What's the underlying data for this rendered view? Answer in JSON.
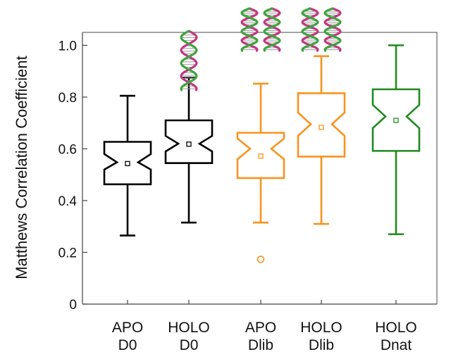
{
  "chart_data": {
    "type": "boxplot",
    "ylabel": "Matthews Correlation Coefficient",
    "ylim": [
      0,
      1.05
    ],
    "yticks": [
      0,
      0.2,
      0.4,
      0.6,
      0.8,
      1.0
    ],
    "ytick_labels": [
      "0",
      "0.2",
      "0.4",
      "0.6",
      "0.8",
      "1.0"
    ],
    "categories": [
      {
        "line1": "APO",
        "line2": "D0"
      },
      {
        "line1": "HOLO",
        "line2": "D0"
      },
      {
        "line1": "APO",
        "line2": "Dlib"
      },
      {
        "line1": "HOLO",
        "line2": "Dlib"
      },
      {
        "line1": "HOLO",
        "line2": "Dnat"
      }
    ],
    "series": [
      {
        "whisker_low": 0.265,
        "q1": 0.463,
        "median": 0.548,
        "q3": 0.627,
        "whisker_high": 0.805,
        "mean": 0.543,
        "notch_low": 0.52,
        "notch_high": 0.58,
        "outliers": [],
        "color": "#000000",
        "dna_icons": 0
      },
      {
        "whisker_low": 0.315,
        "q1": 0.545,
        "median": 0.62,
        "q3": 0.71,
        "whisker_high": 0.875,
        "mean": 0.618,
        "notch_low": 0.59,
        "notch_high": 0.65,
        "outliers": [],
        "color": "#000000",
        "dna_icons": 1
      },
      {
        "whisker_low": 0.315,
        "q1": 0.487,
        "median": 0.6,
        "q3": 0.662,
        "whisker_high": 0.852,
        "mean": 0.572,
        "notch_low": 0.56,
        "notch_high": 0.64,
        "outliers": [
          0.173
        ],
        "color": "#f7931e",
        "dna_icons": 2
      },
      {
        "whisker_low": 0.31,
        "q1": 0.57,
        "median": 0.695,
        "q3": 0.815,
        "whisker_high": 0.958,
        "mean": 0.683,
        "notch_low": 0.65,
        "notch_high": 0.74,
        "outliers": [],
        "color": "#f7931e",
        "dna_icons": 2
      },
      {
        "whisker_low": 0.27,
        "q1": 0.592,
        "median": 0.725,
        "q3": 0.83,
        "whisker_high": 1.0,
        "mean": 0.71,
        "notch_low": 0.68,
        "notch_high": 0.77,
        "outliers": [],
        "color": "#1f8a1f",
        "dna_icons": 0
      }
    ],
    "grid": false,
    "legend": "none",
    "dna_icon_colors": {
      "strand_a": "#c2387f",
      "strand_b": "#3fa33f",
      "rung": "#9a9a9a"
    }
  }
}
